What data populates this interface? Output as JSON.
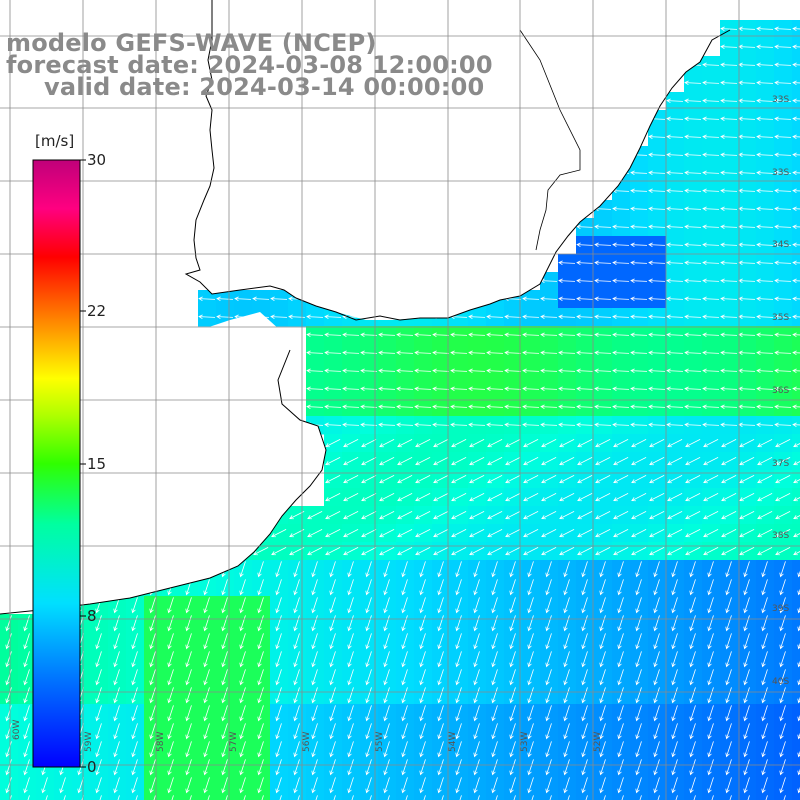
{
  "title": {
    "line1": "modelo GEFS-WAVE (NCEP)",
    "line2": "forecast date: 2024-03-08 12:00:00",
    "line3": "valid date: 2024-03-14 00:00:00"
  },
  "colorbar": {
    "unit": "[m/s]",
    "ticks": [
      "30",
      "22",
      "15",
      "8",
      "0"
    ],
    "min": 0,
    "max": 30,
    "colors": [
      "#0000ff",
      "#00b0ff",
      "#00ffff",
      "#00ff40",
      "#40ff00",
      "#ffff00",
      "#ff8000",
      "#ff0000",
      "#ff00a0",
      "#c0007a"
    ]
  },
  "latitude_labels": [
    "33S",
    "34S",
    "35S",
    "36S",
    "37S",
    "38S",
    "39S",
    "40S"
  ],
  "longitude_labels": [
    "60W",
    "59W",
    "58W",
    "57W",
    "56W",
    "55W",
    "54W",
    "53W",
    "52W"
  ],
  "map": {
    "land_color": "#ffffff",
    "coast_color": "#000000",
    "grid_color": "#8a8a8a",
    "arrow_color": "#ffffff",
    "dominant_flow": "westward in north, south-southwestward in south"
  }
}
